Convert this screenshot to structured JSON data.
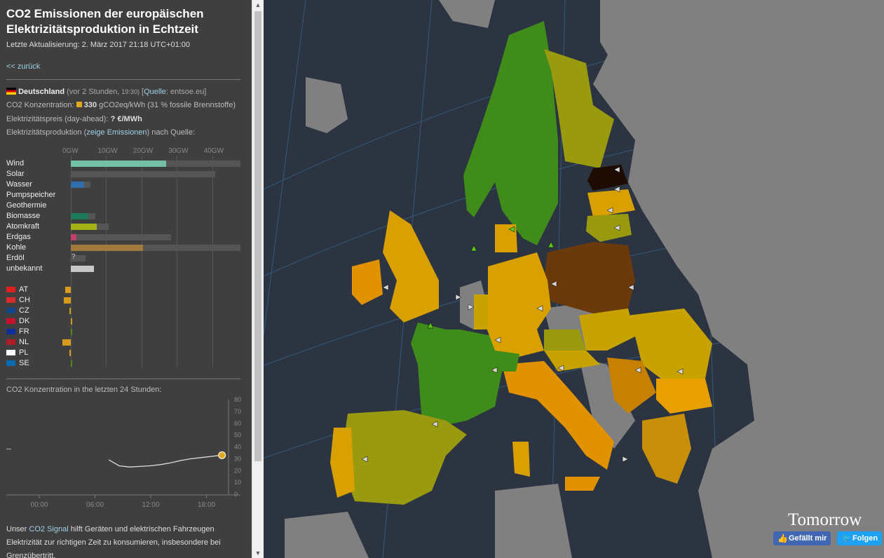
{
  "header": {
    "title": "CO2 Emissionen der europäischen Elektrizitätsproduktion in Echtzeit",
    "updated": "Letzte Aktualisierung: 2. März 2017 21:18 UTC+01:00",
    "back_link": "<< zurück"
  },
  "country": {
    "name": "Deutschland",
    "time_ago": "(vor 2 Stunden,",
    "time": "19:30)",
    "source_prefix": "[",
    "source_link": "Quelle",
    "source_suffix": ": entsoe.eu]",
    "co2_label": "CO2 Konzentration:",
    "co2_value": "330",
    "co2_unit": "gCO2eq/kWh (31 % fossile Brennstoffe)",
    "price_label": "Elektrizitätspreis (day-ahead):",
    "price_value": "? €/MWh",
    "production_label": "Elektrizitätsproduktion (",
    "production_link": "zeige Emissionen",
    "production_suffix": ") nach Quelle:"
  },
  "chart_data": [
    {
      "type": "bar",
      "title": "",
      "xlabel": "",
      "ylabel": "",
      "x_ticks": [
        "0GW",
        "10GW",
        "20GW",
        "30GW",
        "40GW"
      ],
      "xlim": [
        0,
        48
      ],
      "categories": [
        "Wind",
        "Solar",
        "Wasser",
        "Pumpspeicher",
        "Geothermie",
        "Biomasse",
        "Atomkraft",
        "Erdgas",
        "Kohle",
        "Erdöl",
        "unbekannt"
      ],
      "series": [
        {
          "values": [
            27,
            0,
            3.7,
            0,
            0,
            5,
            7.3,
            1.5,
            20.5,
            0,
            6.5
          ]
        },
        {
          "values": [
            48,
            40.8,
            5.5,
            0,
            0,
            7,
            10.8,
            28.3,
            48,
            4.2,
            6.5
          ]
        }
      ],
      "colors": [
        "#74c0a4",
        "#f2c200",
        "#2f6ea8",
        "#1a5f8a",
        "#b0b0b0",
        "#1f7a5c",
        "#a3b317",
        "#c0406a",
        "#a07a3c",
        "#555555",
        "#c8c8c8"
      ],
      "annotations": [
        "?"
      ]
    },
    {
      "type": "bar",
      "title": "",
      "categories": [
        "AT",
        "CH",
        "CZ",
        "DK",
        "FR",
        "NL",
        "PL",
        "SE"
      ],
      "values": [
        -1.5,
        -1.9,
        -0.2,
        0.3,
        0.4,
        -2.4,
        -0.3,
        0.1
      ],
      "colors": [
        "#d89a1c",
        "#d89a1c",
        "#c9a400",
        "#d89a1c",
        "#4a8f1e",
        "#d89a1c",
        "#d89a1c",
        "#4a8f1e"
      ],
      "flags": [
        "#e02020",
        "#d72a2a",
        "#14468c",
        "#c8102e",
        "#0f2e9a",
        "#ae1c28",
        "#ffffff",
        "#0a6bb0"
      ]
    },
    {
      "type": "line",
      "title": "CO2 Konzentration in the letzten 24 Stunden:",
      "x_ticks": [
        "00:00",
        "06:00",
        "12:00",
        "18:00"
      ],
      "y_ticks": [
        "80",
        "70",
        "60",
        "50",
        "40",
        "30",
        "20",
        "10",
        "0"
      ],
      "ylim": [
        0,
        800
      ],
      "x": [
        10,
        11,
        12,
        13,
        14,
        15,
        16,
        17,
        18,
        19,
        20,
        21
      ],
      "series": [
        {
          "values": [
            290,
            240,
            230,
            235,
            240,
            250,
            265,
            285,
            300,
            310,
            320,
            330
          ]
        }
      ],
      "highlight_value": 330,
      "highlight_color": "#e0a820"
    }
  ],
  "footer": {
    "text_prefix": "Unser ",
    "link": "CO2 Signal",
    "text_suffix": " hilft Geräten und elektrischen Fahrzeugen Elektrizität zur richtigen Zeit zu konsumieren, insbesondere bei Grenzübertritt."
  },
  "map": {
    "brand": "Tomorrow",
    "like_button": "Gefällt mir",
    "follow_button": "Folgen",
    "colors": {
      "sea": "#2b3440",
      "no_data": "#808080",
      "low": "#3f8c1a",
      "mid_low": "#9a9a10",
      "mid": "#d8a000",
      "high": "#e09200",
      "very_high": "#6b3a0c",
      "max": "#1e0c04"
    }
  }
}
